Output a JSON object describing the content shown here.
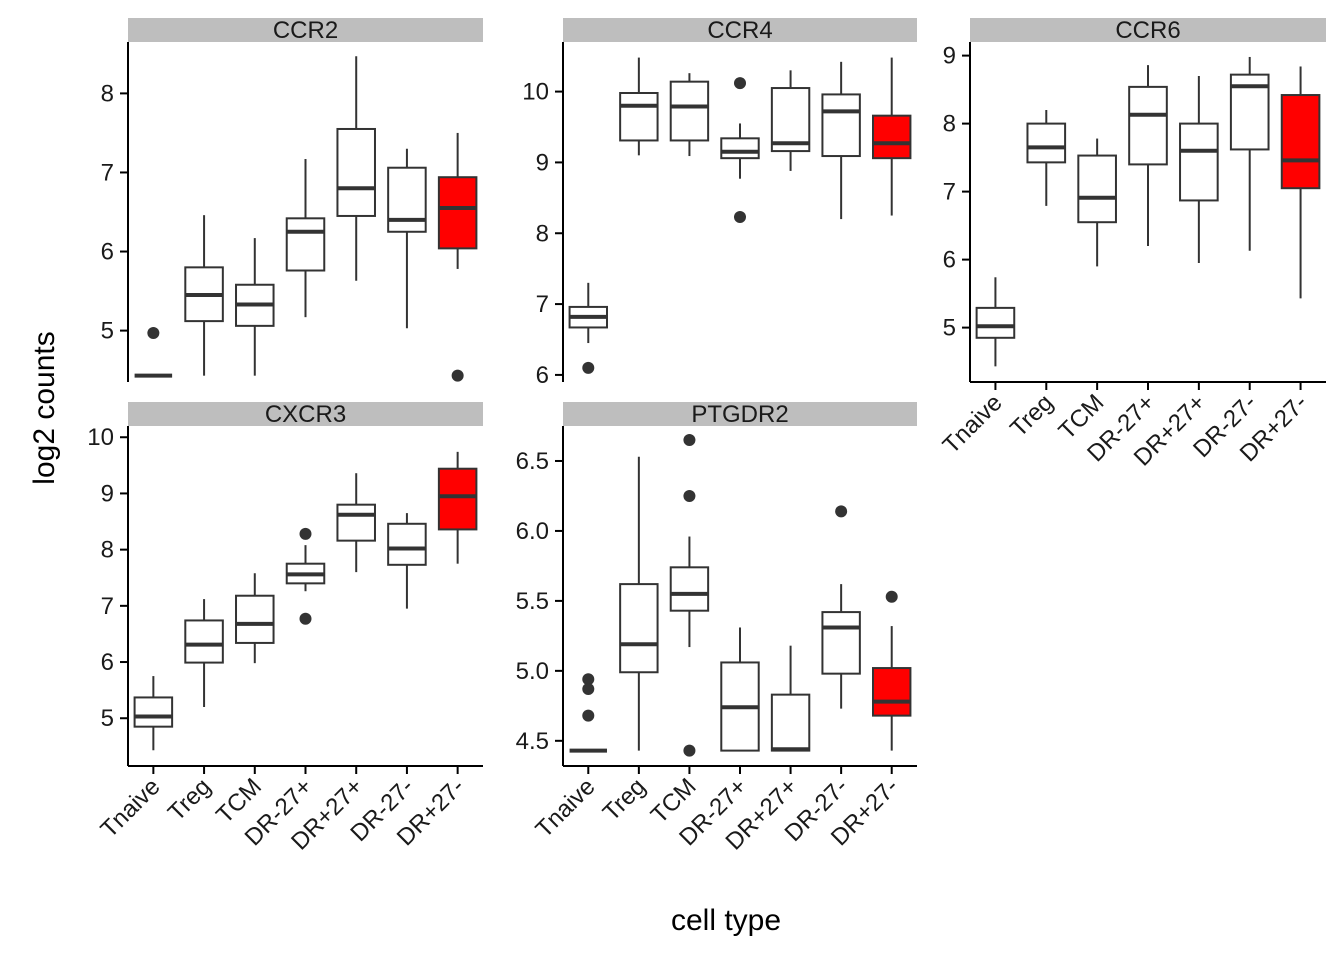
{
  "chart_data": {
    "type": "boxplot",
    "xlabel": "cell type",
    "ylabel": "log2 counts",
    "categories": [
      "Tnaive",
      "Treg",
      "TCM",
      "DR-27+",
      "DR+27+",
      "DR-27-",
      "DR+27-"
    ],
    "highlight_category": "DR+27-",
    "highlight_color": "#ff0000",
    "panels": [
      {
        "title": "CCR2",
        "ylim": [
          4.35,
          8.65
        ],
        "yticks": [
          5,
          6,
          7,
          8
        ],
        "show_x_labels": false,
        "boxes": [
          {
            "category": "Tnaive",
            "min": 4.43,
            "q1": 4.43,
            "median": 4.43,
            "q3": 4.43,
            "max": 4.43,
            "outliers": [
              4.97
            ]
          },
          {
            "category": "Treg",
            "min": 4.43,
            "q1": 5.12,
            "median": 5.45,
            "q3": 5.8,
            "max": 6.46,
            "outliers": []
          },
          {
            "category": "TCM",
            "min": 4.43,
            "q1": 5.06,
            "median": 5.33,
            "q3": 5.58,
            "max": 6.17,
            "outliers": []
          },
          {
            "category": "DR-27+",
            "min": 5.17,
            "q1": 5.76,
            "median": 6.25,
            "q3": 6.42,
            "max": 7.17,
            "outliers": []
          },
          {
            "category": "DR+27+",
            "min": 5.63,
            "q1": 6.45,
            "median": 6.8,
            "q3": 7.55,
            "max": 8.47,
            "outliers": []
          },
          {
            "category": "DR-27-",
            "min": 5.03,
            "q1": 6.25,
            "median": 6.4,
            "q3": 7.06,
            "max": 7.3,
            "outliers": []
          },
          {
            "category": "DR+27-",
            "min": 5.78,
            "q1": 6.04,
            "median": 6.55,
            "q3": 6.94,
            "max": 7.5,
            "outliers": [
              4.43
            ]
          }
        ]
      },
      {
        "title": "CCR4",
        "ylim": [
          5.9,
          10.7
        ],
        "yticks": [
          6,
          7,
          8,
          9,
          10
        ],
        "show_x_labels": false,
        "boxes": [
          {
            "category": "Tnaive",
            "min": 6.45,
            "q1": 6.67,
            "median": 6.82,
            "q3": 6.96,
            "max": 7.3,
            "outliers": [
              6.1
            ]
          },
          {
            "category": "Treg",
            "min": 9.1,
            "q1": 9.31,
            "median": 9.8,
            "q3": 9.98,
            "max": 10.48,
            "outliers": []
          },
          {
            "category": "TCM",
            "min": 9.09,
            "q1": 9.31,
            "median": 9.79,
            "q3": 10.14,
            "max": 10.26,
            "outliers": []
          },
          {
            "category": "DR-27+",
            "min": 8.77,
            "q1": 9.06,
            "median": 9.15,
            "q3": 9.34,
            "max": 9.55,
            "outliers": [
              10.12,
              8.23
            ]
          },
          {
            "category": "DR+27+",
            "min": 8.88,
            "q1": 9.16,
            "median": 9.27,
            "q3": 10.05,
            "max": 10.3,
            "outliers": []
          },
          {
            "category": "DR-27-",
            "min": 8.2,
            "q1": 9.09,
            "median": 9.72,
            "q3": 9.96,
            "max": 10.42,
            "outliers": []
          },
          {
            "category": "DR+27-",
            "min": 8.25,
            "q1": 9.06,
            "median": 9.27,
            "q3": 9.66,
            "max": 10.48,
            "outliers": []
          }
        ]
      },
      {
        "title": "CCR6",
        "ylim": [
          4.2,
          9.2
        ],
        "yticks": [
          5,
          6,
          7,
          8,
          9
        ],
        "show_x_labels": true,
        "boxes": [
          {
            "category": "Tnaive",
            "min": 4.43,
            "q1": 4.85,
            "median": 5.02,
            "q3": 5.29,
            "max": 5.74,
            "outliers": []
          },
          {
            "category": "Treg",
            "min": 6.79,
            "q1": 7.43,
            "median": 7.65,
            "q3": 8.0,
            "max": 8.2,
            "outliers": []
          },
          {
            "category": "TCM",
            "min": 5.9,
            "q1": 6.55,
            "median": 6.91,
            "q3": 7.53,
            "max": 7.78,
            "outliers": []
          },
          {
            "category": "DR-27+",
            "min": 6.2,
            "q1": 7.4,
            "median": 8.13,
            "q3": 8.54,
            "max": 8.86,
            "outliers": []
          },
          {
            "category": "DR+27+",
            "min": 5.95,
            "q1": 6.87,
            "median": 7.6,
            "q3": 8.0,
            "max": 8.7,
            "outliers": []
          },
          {
            "category": "DR-27-",
            "min": 6.13,
            "q1": 7.62,
            "median": 8.55,
            "q3": 8.72,
            "max": 8.98,
            "outliers": []
          },
          {
            "category": "DR+27-",
            "min": 5.43,
            "q1": 7.05,
            "median": 7.46,
            "q3": 8.42,
            "max": 8.84,
            "outliers": []
          }
        ]
      },
      {
        "title": "CXCR3",
        "ylim": [
          4.15,
          10.2
        ],
        "yticks": [
          5,
          6,
          7,
          8,
          9,
          10
        ],
        "show_x_labels": true,
        "boxes": [
          {
            "category": "Tnaive",
            "min": 4.43,
            "q1": 4.85,
            "median": 5.03,
            "q3": 5.37,
            "max": 5.75,
            "outliers": []
          },
          {
            "category": "Treg",
            "min": 5.2,
            "q1": 5.99,
            "median": 6.31,
            "q3": 6.74,
            "max": 7.12,
            "outliers": []
          },
          {
            "category": "TCM",
            "min": 5.98,
            "q1": 6.34,
            "median": 6.68,
            "q3": 7.18,
            "max": 7.58,
            "outliers": []
          },
          {
            "category": "DR-27+",
            "min": 7.26,
            "q1": 7.4,
            "median": 7.56,
            "q3": 7.75,
            "max": 8.08,
            "outliers": [
              8.28,
              6.77
            ]
          },
          {
            "category": "DR+27+",
            "min": 7.6,
            "q1": 8.16,
            "median": 8.62,
            "q3": 8.8,
            "max": 9.36,
            "outliers": []
          },
          {
            "category": "DR-27-",
            "min": 6.95,
            "q1": 7.73,
            "median": 8.02,
            "q3": 8.46,
            "max": 8.65,
            "outliers": []
          },
          {
            "category": "DR+27-",
            "min": 7.75,
            "q1": 8.36,
            "median": 8.95,
            "q3": 9.44,
            "max": 9.74,
            "outliers": []
          }
        ]
      },
      {
        "title": "PTGDR2",
        "ylim": [
          4.32,
          6.75
        ],
        "yticks": [
          4.5,
          5.0,
          5.5,
          6.0,
          6.5
        ],
        "ytick_labels": [
          "4.5",
          "5.0",
          "5.5",
          "6.0",
          "6.5"
        ],
        "show_x_labels": true,
        "boxes": [
          {
            "category": "Tnaive",
            "min": 4.43,
            "q1": 4.43,
            "median": 4.43,
            "q3": 4.43,
            "max": 4.43,
            "outliers": [
              4.94,
              4.87,
              4.68
            ]
          },
          {
            "category": "Treg",
            "min": 4.43,
            "q1": 4.99,
            "median": 5.19,
            "q3": 5.62,
            "max": 6.53,
            "outliers": []
          },
          {
            "category": "TCM",
            "min": 5.17,
            "q1": 5.43,
            "median": 5.55,
            "q3": 5.74,
            "max": 5.96,
            "outliers": [
              6.65,
              6.25,
              4.43
            ]
          },
          {
            "category": "DR-27+",
            "min": 4.43,
            "q1": 4.43,
            "median": 4.74,
            "q3": 5.06,
            "max": 5.31,
            "outliers": []
          },
          {
            "category": "DR+27+",
            "min": 4.43,
            "q1": 4.43,
            "median": 4.44,
            "q3": 4.83,
            "max": 5.18,
            "outliers": []
          },
          {
            "category": "DR-27-",
            "min": 4.73,
            "q1": 4.98,
            "median": 5.31,
            "q3": 5.42,
            "max": 5.62,
            "outliers": [
              6.14
            ]
          },
          {
            "category": "DR+27-",
            "min": 4.43,
            "q1": 4.68,
            "median": 4.78,
            "q3": 5.02,
            "max": 5.32,
            "outliers": [
              5.53
            ]
          }
        ]
      }
    ]
  }
}
